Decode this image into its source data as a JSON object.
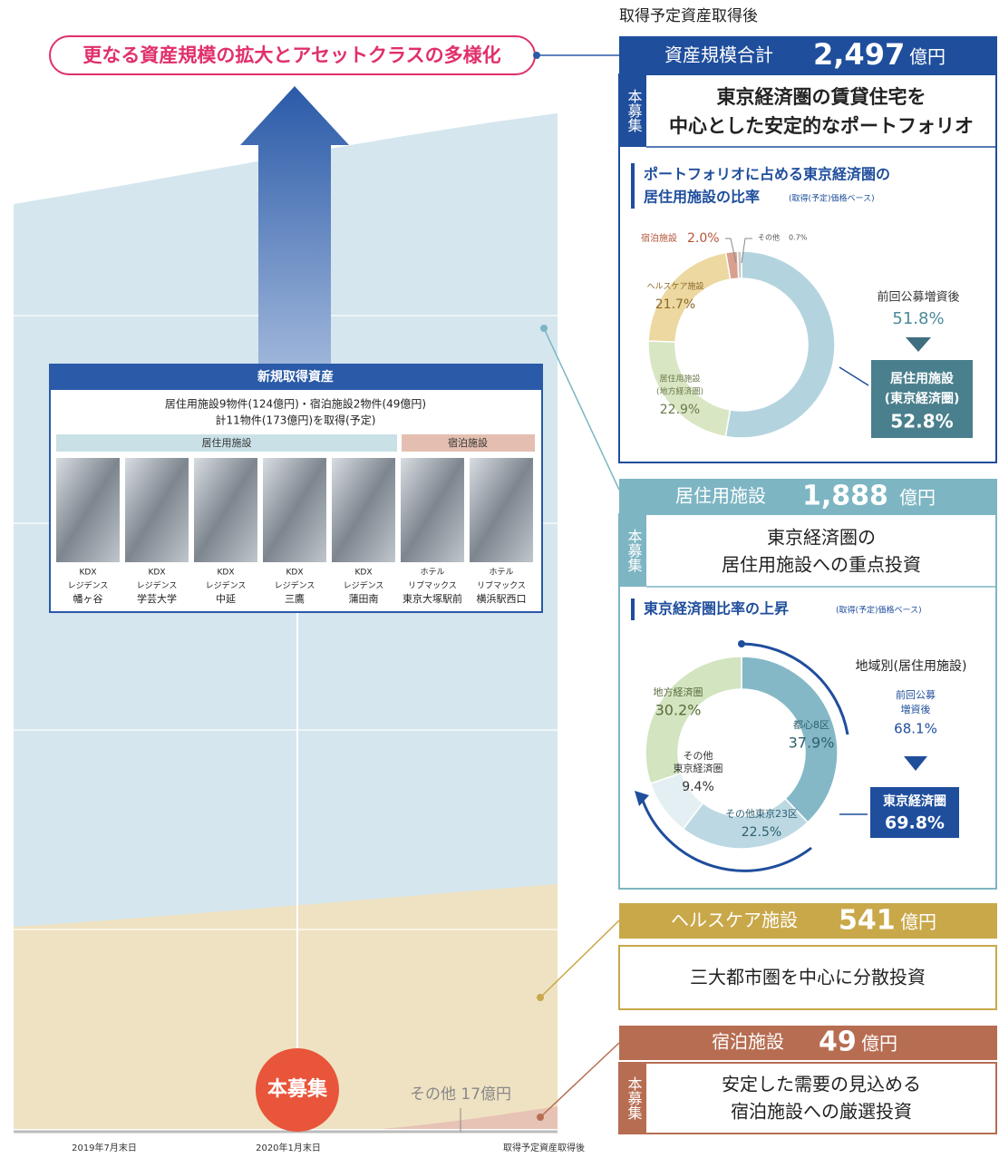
{
  "header_note": "取得予定資産取得後",
  "headline": "更なる資産規模の拡大とアセットクラスの多様化",
  "timeline": [
    "2019年7月末日",
    "2020年1月末日",
    "取得予定資産取得後"
  ],
  "new_acquisitions": {
    "title": "新規取得資産",
    "summary": [
      "居住用施設9物件(124億円)・宿泊施設2物件(49億円)",
      "計11物件(173億円)を取得(予定)"
    ],
    "groups": [
      "居住用施設",
      "宿泊施設"
    ],
    "properties": [
      [
        "KDX",
        "レジデンス",
        "幡ヶ谷"
      ],
      [
        "KDX",
        "レジデンス",
        "学芸大学"
      ],
      [
        "KDX",
        "レジデンス",
        "中延"
      ],
      [
        "KDX",
        "レジデンス",
        "三鷹"
      ],
      [
        "KDX",
        "レジデンス",
        "蒲田南"
      ],
      [
        "ホテル",
        "リブマックス",
        "東京大塚駅前"
      ],
      [
        "ホテル",
        "リブマックス",
        "横浜駅西口"
      ]
    ]
  },
  "offering_badge": "本募集",
  "other_note": "その他 17億円",
  "total": {
    "label": "資産規模合計",
    "amount": "2,497",
    "unit": "億円"
  },
  "portfolio": {
    "tag": "本募集",
    "title": [
      "東京経済圏の賃貸住宅を",
      "中心とした安定的なポートフォリオ"
    ],
    "chart_title": [
      "ポートフォリオに占める東京経済圏の",
      "居住用施設の比率"
    ],
    "chart_note": "(取得(予定)価格ベース)",
    "previous_label": "前回公募増資後",
    "previous_value": "51.8%",
    "segments": [
      {
        "name": [
          "居住用施設",
          "(東京経済圏)"
        ],
        "value": 52.8,
        "label": "52.8%",
        "color": "#b3d4df"
      },
      {
        "name": [
          "居住用施設",
          "(地方経済圏)"
        ],
        "value": 22.9,
        "label": "22.9%",
        "color": "#d9e6c3"
      },
      {
        "name": [
          "ヘルスケア施設"
        ],
        "value": 21.7,
        "label": "21.7%",
        "color": "#ecd8a0"
      },
      {
        "name": [
          "宿泊施設"
        ],
        "value": 2.0,
        "label": "2.0%",
        "color": "#d9a08f"
      },
      {
        "name": [
          "その他"
        ],
        "value": 0.7,
        "label": "0.7%",
        "color": "#c8c8c8"
      }
    ]
  },
  "residential": {
    "label": "居住用施設",
    "amount": "1,888",
    "unit": "億円",
    "tag": "本募集",
    "title": [
      "東京経済圏の",
      "居住用施設への重点投資"
    ],
    "chart_title": "東京経済圏比率の上昇",
    "chart_note": "(取得(予定)価格ベース)",
    "region_title": "地域別(居住用施設)",
    "previous_label": [
      "前回公募",
      "増資後"
    ],
    "previous_value": "68.1%",
    "current_label": "東京経済圏",
    "current_value": "69.8%",
    "segments": [
      {
        "name": [
          "都心8区"
        ],
        "value": 37.9,
        "label": "37.9%",
        "color": "#84b8c6"
      },
      {
        "name": [
          "その他東京23区"
        ],
        "value": 22.5,
        "label": "22.5%",
        "color": "#bcd9e3"
      },
      {
        "name": [
          "その他",
          "東京経済圏"
        ],
        "value": 9.4,
        "label": "9.4%",
        "color": "#e4eff3"
      },
      {
        "name": [
          "地方経済圏"
        ],
        "value": 30.2,
        "label": "30.2%",
        "color": "#d2e4c0"
      }
    ]
  },
  "healthcare": {
    "label": "ヘルスケア施設",
    "amount": "541",
    "unit": "億円",
    "text": "三大都市圏を中心に分散投資"
  },
  "hotel": {
    "label": "宿泊施設",
    "amount": "49",
    "unit": "億円",
    "tag": "本募集",
    "title": [
      "安定した需要の見込める",
      "宿泊施設への厳選投資"
    ]
  }
}
